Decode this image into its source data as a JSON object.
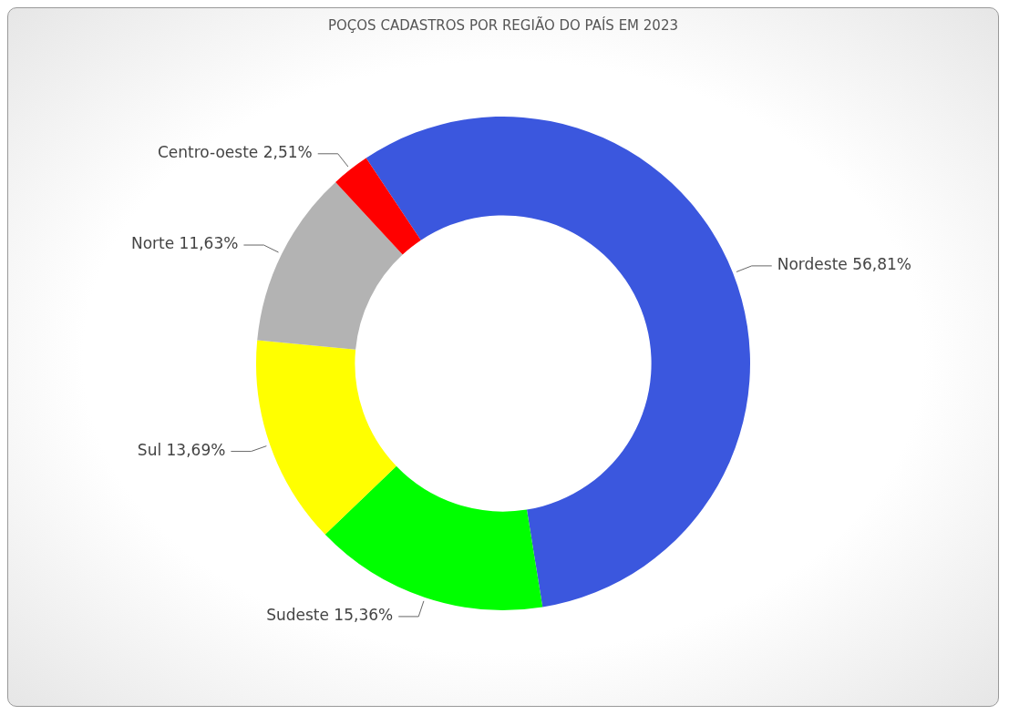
{
  "chart_data": {
    "type": "donut",
    "title": "POÇOS CADASTROS POR REGIÃO DO PAÍS EM 2023",
    "categories": [
      "Nordeste",
      "Sudeste",
      "Sul",
      "Norte",
      "Centro-oeste"
    ],
    "values": [
      56.81,
      15.36,
      13.69,
      11.63,
      2.51
    ],
    "value_labels": [
      "56,81%",
      "15,36%",
      "13,69%",
      "11,63%",
      "2,51%"
    ],
    "colors": [
      "#3b57de",
      "#00ff00",
      "#ffff00",
      "#b3b3b3",
      "#ff0000"
    ],
    "legend": false
  }
}
